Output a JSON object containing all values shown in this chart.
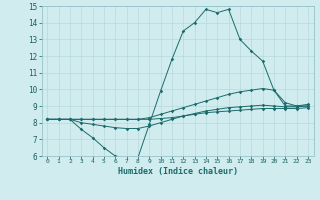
{
  "background_color": "#d0ecee",
  "grid_color": "#b8d8dc",
  "line_color": "#1a6b6b",
  "xlim": [
    -0.5,
    23.5
  ],
  "ylim": [
    6,
    15
  ],
  "xticks": [
    0,
    1,
    2,
    3,
    4,
    5,
    6,
    7,
    8,
    9,
    10,
    11,
    12,
    13,
    14,
    15,
    16,
    17,
    18,
    19,
    20,
    21,
    22,
    23
  ],
  "yticks": [
    6,
    7,
    8,
    9,
    10,
    11,
    12,
    13,
    14,
    15
  ],
  "xlabel": "Humidex (Indice chaleur)",
  "series": [
    {
      "x": [
        0,
        1,
        2,
        3,
        4,
        5,
        6,
        7,
        8,
        9,
        10,
        11,
        12,
        13,
        14,
        15,
        16,
        17,
        18,
        19,
        20,
        21,
        22,
        23
      ],
      "y": [
        8.2,
        8.2,
        8.2,
        7.6,
        7.1,
        6.5,
        6.0,
        5.9,
        5.9,
        7.9,
        9.9,
        11.8,
        13.5,
        14.0,
        14.8,
        14.6,
        14.8,
        13.0,
        12.3,
        11.7,
        9.95,
        9.0,
        9.0,
        9.1
      ]
    },
    {
      "x": [
        0,
        1,
        2,
        3,
        4,
        5,
        6,
        7,
        8,
        9,
        10,
        11,
        12,
        13,
        14,
        15,
        16,
        17,
        18,
        19,
        20,
        21,
        22,
        23
      ],
      "y": [
        8.2,
        8.2,
        8.2,
        8.2,
        8.2,
        8.2,
        8.2,
        8.2,
        8.2,
        8.3,
        8.5,
        8.7,
        8.9,
        9.1,
        9.3,
        9.5,
        9.7,
        9.85,
        9.95,
        10.05,
        9.95,
        9.2,
        9.0,
        9.0
      ]
    },
    {
      "x": [
        0,
        1,
        2,
        3,
        4,
        5,
        6,
        7,
        8,
        9,
        10,
        11,
        12,
        13,
        14,
        15,
        16,
        17,
        18,
        19,
        20,
        21,
        22,
        23
      ],
      "y": [
        8.2,
        8.2,
        8.2,
        8.0,
        7.9,
        7.8,
        7.7,
        7.65,
        7.65,
        7.8,
        8.0,
        8.2,
        8.4,
        8.55,
        8.7,
        8.8,
        8.9,
        8.95,
        9.0,
        9.05,
        9.0,
        8.95,
        8.95,
        9.0
      ]
    },
    {
      "x": [
        0,
        1,
        2,
        3,
        4,
        5,
        6,
        7,
        8,
        9,
        10,
        11,
        12,
        13,
        14,
        15,
        16,
        17,
        18,
        19,
        20,
        21,
        22,
        23
      ],
      "y": [
        8.2,
        8.2,
        8.2,
        8.2,
        8.2,
        8.2,
        8.2,
        8.2,
        8.2,
        8.2,
        8.25,
        8.3,
        8.4,
        8.5,
        8.6,
        8.65,
        8.7,
        8.75,
        8.8,
        8.85,
        8.85,
        8.85,
        8.85,
        8.9
      ]
    }
  ]
}
